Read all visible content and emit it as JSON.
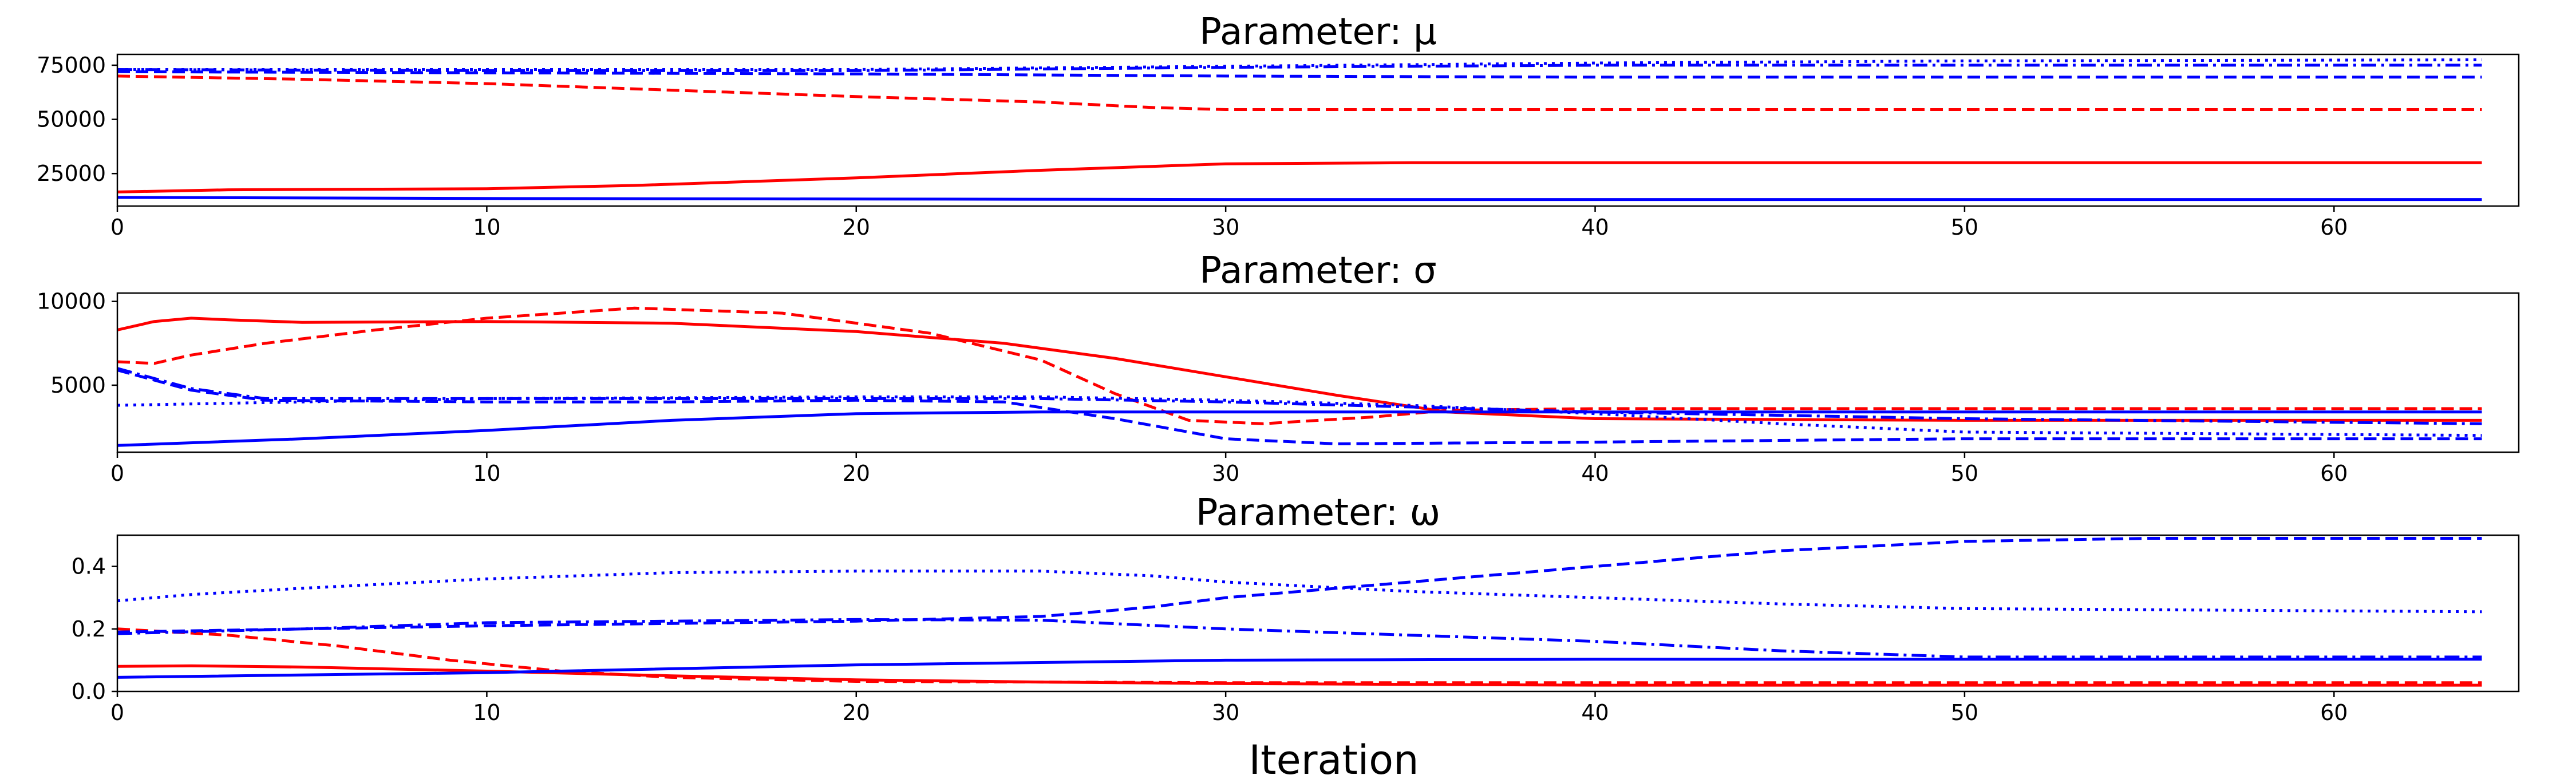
{
  "figure": {
    "xlabel": "Iteration"
  },
  "chart_data": [
    {
      "type": "line",
      "title": "Parameter: μ",
      "xlim": [
        0,
        65
      ],
      "ylim": [
        10000,
        80000
      ],
      "x_ticks": [
        0,
        10,
        20,
        30,
        40,
        50,
        60
      ],
      "y_ticks": [
        25000,
        50000,
        75000
      ],
      "y_tick_labels": [
        "25000",
        "50000",
        "75000"
      ],
      "series": [
        {
          "color": "#ff0000",
          "style": "solid",
          "points": [
            [
              0,
              16500
            ],
            [
              3,
              17500
            ],
            [
              10,
              18000
            ],
            [
              14,
              19500
            ],
            [
              20,
              23000
            ],
            [
              25,
              26500
            ],
            [
              30,
              29500
            ],
            [
              35,
              30000
            ],
            [
              45,
              30000
            ],
            [
              64,
              30000
            ]
          ]
        },
        {
          "color": "#ff0000",
          "style": "dashed",
          "points": [
            [
              0,
              70000
            ],
            [
              5,
              68500
            ],
            [
              10,
              66500
            ],
            [
              15,
              63500
            ],
            [
              20,
              60500
            ],
            [
              25,
              58000
            ],
            [
              28,
              55500
            ],
            [
              30,
              54500
            ],
            [
              40,
              54500
            ],
            [
              64,
              54500
            ]
          ]
        },
        {
          "color": "#0000ff",
          "style": "solid",
          "points": [
            [
              0,
              14000
            ],
            [
              10,
              13500
            ],
            [
              30,
              13000
            ],
            [
              64,
              13000
            ]
          ]
        },
        {
          "color": "#0000ff",
          "style": "dashed",
          "points": [
            [
              0,
              72000
            ],
            [
              10,
              71500
            ],
            [
              20,
              71000
            ],
            [
              30,
              70000
            ],
            [
              40,
              69500
            ],
            [
              64,
              69500
            ]
          ]
        },
        {
          "color": "#0000ff",
          "style": "dashdot",
          "points": [
            [
              0,
              73000
            ],
            [
              10,
              72500
            ],
            [
              20,
              72500
            ],
            [
              30,
              74000
            ],
            [
              40,
              75000
            ],
            [
              50,
              75000
            ],
            [
              64,
              75000
            ]
          ]
        },
        {
          "color": "#0000ff",
          "style": "dotted",
          "points": [
            [
              0,
              73000
            ],
            [
              20,
              73000
            ],
            [
              30,
              74500
            ],
            [
              40,
              76000
            ],
            [
              50,
              77000
            ],
            [
              64,
              77500
            ]
          ]
        }
      ]
    },
    {
      "type": "line",
      "title": "Parameter: σ",
      "xlim": [
        0,
        65
      ],
      "ylim": [
        1000,
        10500
      ],
      "x_ticks": [
        0,
        10,
        20,
        30,
        40,
        50,
        60
      ],
      "y_ticks": [
        5000,
        10000
      ],
      "y_tick_labels": [
        "5000",
        "10000"
      ],
      "series": [
        {
          "color": "#ff0000",
          "style": "solid",
          "points": [
            [
              0,
              8300
            ],
            [
              1,
              8800
            ],
            [
              2,
              9000
            ],
            [
              3,
              8900
            ],
            [
              5,
              8750
            ],
            [
              10,
              8800
            ],
            [
              15,
              8700
            ],
            [
              20,
              8200
            ],
            [
              24,
              7500
            ],
            [
              27,
              6600
            ],
            [
              30,
              5500
            ],
            [
              33,
              4400
            ],
            [
              36,
              3400
            ],
            [
              40,
              3000
            ],
            [
              50,
              2900
            ],
            [
              64,
              2900
            ]
          ]
        },
        {
          "color": "#ff0000",
          "style": "dashed",
          "points": [
            [
              0,
              6400
            ],
            [
              1,
              6300
            ],
            [
              2,
              6800
            ],
            [
              4,
              7500
            ],
            [
              7,
              8300
            ],
            [
              10,
              9000
            ],
            [
              14,
              9600
            ],
            [
              18,
              9300
            ],
            [
              22,
              8100
            ],
            [
              25,
              6500
            ],
            [
              27,
              4500
            ],
            [
              29,
              2900
            ],
            [
              31,
              2700
            ],
            [
              34,
              3100
            ],
            [
              36,
              3500
            ],
            [
              40,
              3600
            ],
            [
              64,
              3600
            ]
          ]
        },
        {
          "color": "#0000ff",
          "style": "solid",
          "points": [
            [
              0,
              1400
            ],
            [
              5,
              1800
            ],
            [
              10,
              2300
            ],
            [
              15,
              2900
            ],
            [
              20,
              3300
            ],
            [
              25,
              3400
            ],
            [
              30,
              3400
            ],
            [
              40,
              3400
            ],
            [
              64,
              3400
            ]
          ]
        },
        {
          "color": "#0000ff",
          "style": "dashed",
          "points": [
            [
              0,
              5900
            ],
            [
              2,
              4700
            ],
            [
              4,
              4100
            ],
            [
              10,
              4000
            ],
            [
              15,
              4000
            ],
            [
              20,
              4100
            ],
            [
              24,
              4000
            ],
            [
              27,
              3000
            ],
            [
              30,
              1800
            ],
            [
              33,
              1500
            ],
            [
              40,
              1600
            ],
            [
              50,
              1800
            ],
            [
              64,
              1800
            ]
          ]
        },
        {
          "color": "#0000ff",
          "style": "dashdot",
          "points": [
            [
              0,
              6000
            ],
            [
              2,
              4800
            ],
            [
              4,
              4200
            ],
            [
              10,
              4200
            ],
            [
              20,
              4200
            ],
            [
              25,
              4200
            ],
            [
              30,
              4000
            ],
            [
              35,
              3700
            ],
            [
              40,
              3400
            ],
            [
              50,
              3000
            ],
            [
              64,
              2700
            ]
          ]
        },
        {
          "color": "#0000ff",
          "style": "dotted",
          "points": [
            [
              0,
              3800
            ],
            [
              5,
              4000
            ],
            [
              10,
              4200
            ],
            [
              20,
              4300
            ],
            [
              25,
              4300
            ],
            [
              30,
              4100
            ],
            [
              35,
              3800
            ],
            [
              40,
              3300
            ],
            [
              45,
              2700
            ],
            [
              50,
              2200
            ],
            [
              64,
              2000
            ]
          ]
        }
      ]
    },
    {
      "type": "line",
      "title": "Parameter: ω",
      "xlim": [
        0,
        65
      ],
      "ylim": [
        0,
        0.5
      ],
      "x_ticks": [
        0,
        10,
        20,
        30,
        40,
        50,
        60
      ],
      "y_ticks": [
        0.0,
        0.2,
        0.4
      ],
      "y_tick_labels": [
        "0.0",
        "0.2",
        "0.4"
      ],
      "series": [
        {
          "color": "#ff0000",
          "style": "solid",
          "points": [
            [
              0,
              0.08
            ],
            [
              2,
              0.082
            ],
            [
              5,
              0.078
            ],
            [
              10,
              0.065
            ],
            [
              15,
              0.05
            ],
            [
              20,
              0.037
            ],
            [
              25,
              0.03
            ],
            [
              30,
              0.025
            ],
            [
              40,
              0.02
            ],
            [
              64,
              0.02
            ]
          ]
        },
        {
          "color": "#ff0000",
          "style": "dashed",
          "points": [
            [
              0,
              0.2
            ],
            [
              3,
              0.18
            ],
            [
              6,
              0.145
            ],
            [
              9,
              0.1
            ],
            [
              12,
              0.065
            ],
            [
              15,
              0.045
            ],
            [
              20,
              0.032
            ],
            [
              30,
              0.028
            ],
            [
              64,
              0.028
            ]
          ]
        },
        {
          "color": "#0000ff",
          "style": "solid",
          "points": [
            [
              0,
              0.045
            ],
            [
              10,
              0.06
            ],
            [
              20,
              0.085
            ],
            [
              30,
              0.1
            ],
            [
              40,
              0.103
            ],
            [
              64,
              0.103
            ]
          ]
        },
        {
          "color": "#0000ff",
          "style": "dashed",
          "points": [
            [
              0,
              0.19
            ],
            [
              10,
              0.21
            ],
            [
              20,
              0.225
            ],
            [
              25,
              0.24
            ],
            [
              28,
              0.27
            ],
            [
              30,
              0.3
            ],
            [
              35,
              0.35
            ],
            [
              40,
              0.4
            ],
            [
              45,
              0.45
            ],
            [
              50,
              0.48
            ],
            [
              55,
              0.49
            ],
            [
              64,
              0.49
            ]
          ]
        },
        {
          "color": "#0000ff",
          "style": "dashdot",
          "points": [
            [
              0,
              0.185
            ],
            [
              5,
              0.2
            ],
            [
              10,
              0.22
            ],
            [
              15,
              0.225
            ],
            [
              20,
              0.23
            ],
            [
              25,
              0.228
            ],
            [
              30,
              0.2
            ],
            [
              35,
              0.18
            ],
            [
              40,
              0.16
            ],
            [
              45,
              0.13
            ],
            [
              50,
              0.11
            ],
            [
              64,
              0.11
            ]
          ]
        },
        {
          "color": "#0000ff",
          "style": "dotted",
          "points": [
            [
              0,
              0.29
            ],
            [
              2,
              0.31
            ],
            [
              5,
              0.33
            ],
            [
              10,
              0.36
            ],
            [
              15,
              0.38
            ],
            [
              20,
              0.385
            ],
            [
              25,
              0.385
            ],
            [
              28,
              0.37
            ],
            [
              30,
              0.35
            ],
            [
              35,
              0.32
            ],
            [
              40,
              0.3
            ],
            [
              45,
              0.28
            ],
            [
              50,
              0.265
            ],
            [
              64,
              0.255
            ]
          ]
        }
      ]
    }
  ]
}
